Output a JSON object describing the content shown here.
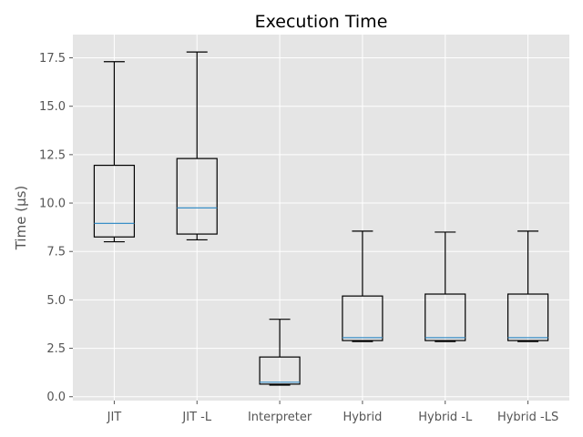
{
  "chart_data": {
    "type": "box",
    "title": "Execution Time",
    "xlabel": "",
    "ylabel": "Time (µs)",
    "ylim": [
      -0.2,
      18.7
    ],
    "yticks": [
      "0.0",
      "2.5",
      "5.0",
      "7.5",
      "10.0",
      "12.5",
      "15.0",
      "17.5"
    ],
    "ytick_values": [
      0,
      2.5,
      5,
      7.5,
      10,
      12.5,
      15,
      17.5
    ],
    "grid": true,
    "categories": [
      "JIT",
      "JIT -L",
      "Interpreter",
      "Hybrid",
      "Hybrid -L",
      "Hybrid -LS"
    ],
    "boxes": [
      {
        "label": "JIT",
        "whislo": 8.0,
        "q1": 8.25,
        "med": 8.95,
        "q3": 11.95,
        "whishi": 17.3
      },
      {
        "label": "JIT -L",
        "whislo": 8.1,
        "q1": 8.4,
        "med": 9.75,
        "q3": 12.3,
        "whishi": 17.8
      },
      {
        "label": "Interpreter",
        "whislo": 0.6,
        "q1": 0.65,
        "med": 0.75,
        "q3": 2.05,
        "whishi": 4.0
      },
      {
        "label": "Hybrid",
        "whislo": 2.85,
        "q1": 2.9,
        "med": 3.05,
        "q3": 5.2,
        "whishi": 8.55
      },
      {
        "label": "Hybrid -L",
        "whislo": 2.85,
        "q1": 2.9,
        "med": 3.05,
        "q3": 5.3,
        "whishi": 8.5
      },
      {
        "label": "Hybrid -LS",
        "whislo": 2.85,
        "q1": 2.9,
        "med": 3.05,
        "q3": 5.3,
        "whishi": 8.55
      }
    ],
    "colors": {
      "background": "#e5e5e5",
      "grid": "#ffffff",
      "box": "#000000",
      "median": "#3a8fc7",
      "text": "#555555",
      "title": "#000000"
    }
  }
}
